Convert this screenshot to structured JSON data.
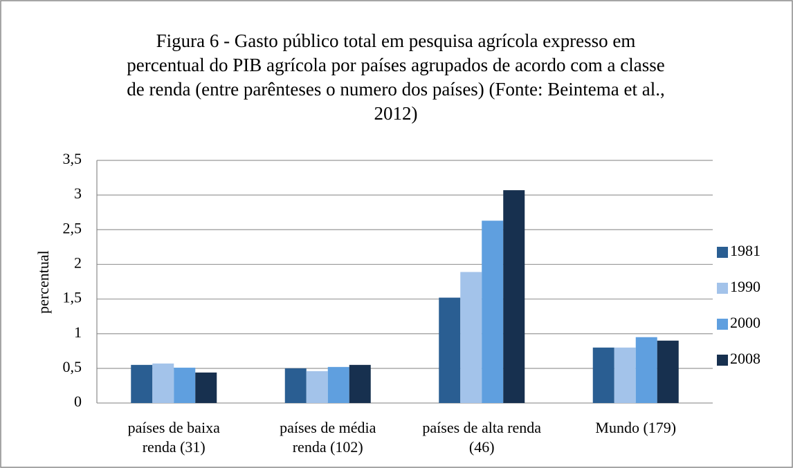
{
  "chart_data": {
    "type": "bar",
    "title": "Figura 6 - Gasto público total em pesquisa agrícola expresso em percentual do PIB agrícola por países agrupados de acordo com a classe de renda  (entre parênteses o numero dos países) (Fonte: Beintema et al., 2012)",
    "y_label": "percentual",
    "categories": [
      "países de baixa renda (31)",
      "países de média renda (102)",
      "países de alta renda (46)",
      "Mundo (179)"
    ],
    "series": [
      {
        "name": "1981",
        "color": "#2a5e92",
        "values": [
          0.55,
          0.5,
          1.52,
          0.8
        ]
      },
      {
        "name": "1990",
        "color": "#a3c3ea",
        "values": [
          0.57,
          0.46,
          1.89,
          0.8
        ]
      },
      {
        "name": "2000",
        "color": "#5f9fdf",
        "values": [
          0.51,
          0.52,
          2.63,
          0.95
        ]
      },
      {
        "name": "2008",
        "color": "#17304f",
        "values": [
          0.44,
          0.55,
          3.07,
          0.9
        ]
      }
    ],
    "ylim": [
      0,
      3.5
    ],
    "yticks": [
      0,
      {
        "value": 0.5,
        "label": "0,5"
      },
      1,
      {
        "value": 1.5,
        "label": "1,5"
      },
      2,
      {
        "value": 2.5,
        "label": "2,5"
      },
      3,
      {
        "value": 3.5,
        "label": "3,5"
      }
    ],
    "grid": true,
    "legend": "right"
  }
}
